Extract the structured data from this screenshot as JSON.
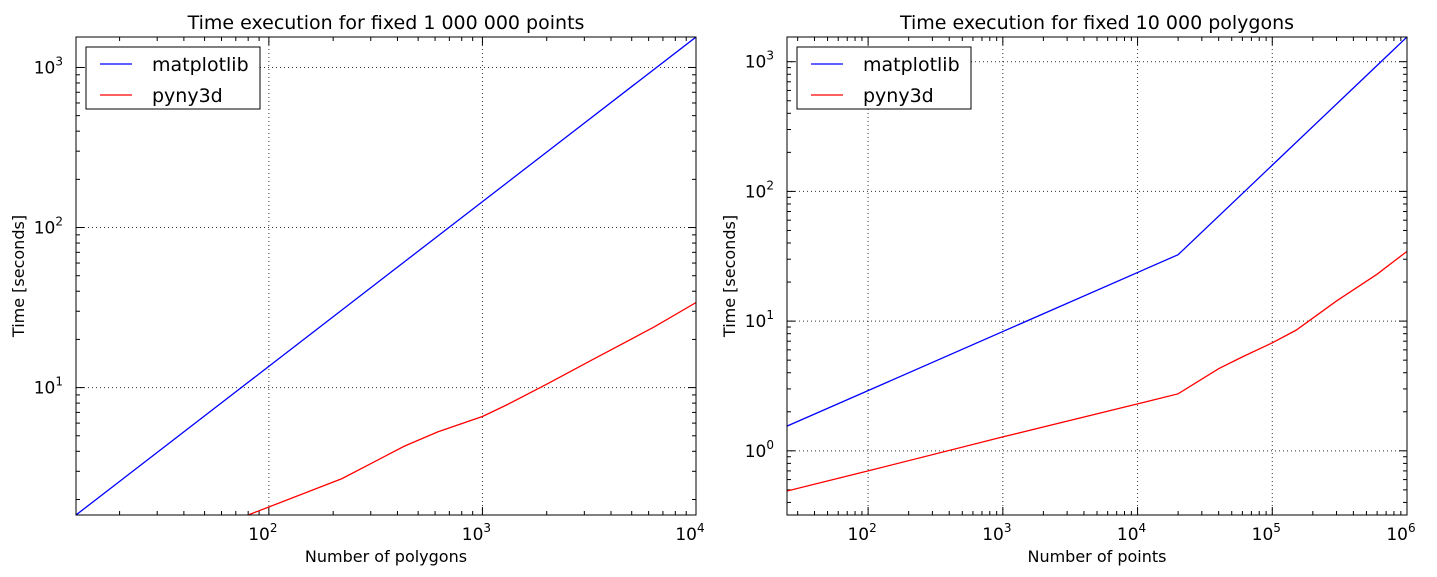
{
  "chart_data": [
    {
      "type": "line",
      "title": "Time execution for fixed 1 000 000 points",
      "xlabel": "Number of polygons",
      "ylabel": "Time [seconds]",
      "xscale": "log",
      "yscale": "log",
      "xlim": [
        12.5,
        10000
      ],
      "ylim": [
        1.6,
        1550
      ],
      "x_ticks": [
        {
          "value": 100,
          "base": "10",
          "exp": "2"
        },
        {
          "value": 1000,
          "base": "10",
          "exp": "3"
        },
        {
          "value": 10000,
          "base": "10",
          "exp": "4"
        }
      ],
      "y_ticks": [
        {
          "value": 10,
          "base": "10",
          "exp": "1"
        },
        {
          "value": 100,
          "base": "10",
          "exp": "2"
        },
        {
          "value": 1000,
          "base": "10",
          "exp": "3"
        }
      ],
      "grid": true,
      "legend_position": "top-left",
      "series": [
        {
          "name": "matplotlib",
          "color": "#0000ff",
          "x": [
            12.5,
            10000
          ],
          "y": [
            1.6,
            1550
          ]
        },
        {
          "name": "pyny3d",
          "color": "#ff0000",
          "x": [
            80,
            220,
            430,
            620,
            1000,
            1300,
            2000,
            3200,
            6400,
            10000
          ],
          "y": [
            1.6,
            2.7,
            4.3,
            5.3,
            6.6,
            7.8,
            10.5,
            14.7,
            24.0,
            34.0
          ]
        }
      ]
    },
    {
      "type": "line",
      "title": "Time execution for fixed 10 000 polygons",
      "xlabel": "Number of points",
      "ylabel": "Time [seconds]",
      "xscale": "log",
      "yscale": "log",
      "xlim": [
        25,
        1000000
      ],
      "ylim": [
        0.32,
        1550
      ],
      "x_ticks": [
        {
          "value": 100,
          "base": "10",
          "exp": "2"
        },
        {
          "value": 1000,
          "base": "10",
          "exp": "3"
        },
        {
          "value": 10000,
          "base": "10",
          "exp": "4"
        },
        {
          "value": 100000,
          "base": "10",
          "exp": "5"
        },
        {
          "value": 1000000,
          "base": "10",
          "exp": "6"
        }
      ],
      "y_ticks": [
        {
          "value": 1,
          "base": "10",
          "exp": "0"
        },
        {
          "value": 10,
          "base": "10",
          "exp": "1"
        },
        {
          "value": 100,
          "base": "10",
          "exp": "2"
        },
        {
          "value": 1000,
          "base": "10",
          "exp": "3"
        }
      ],
      "grid": true,
      "legend_position": "top-left",
      "series": [
        {
          "name": "matplotlib",
          "color": "#0000ff",
          "x": [
            25,
            20000,
            1000000
          ],
          "y": [
            1.55,
            32.5,
            1550
          ]
        },
        {
          "name": "pyny3d",
          "color": "#ff0000",
          "x": [
            25,
            100,
            1000,
            10000,
            20000,
            40000,
            60000,
            100000,
            150000,
            300000,
            600000,
            1000000
          ],
          "y": [
            0.49,
            0.7,
            1.28,
            2.3,
            2.75,
            4.3,
            5.3,
            6.8,
            8.5,
            14.3,
            23.0,
            34.5
          ]
        }
      ]
    }
  ]
}
